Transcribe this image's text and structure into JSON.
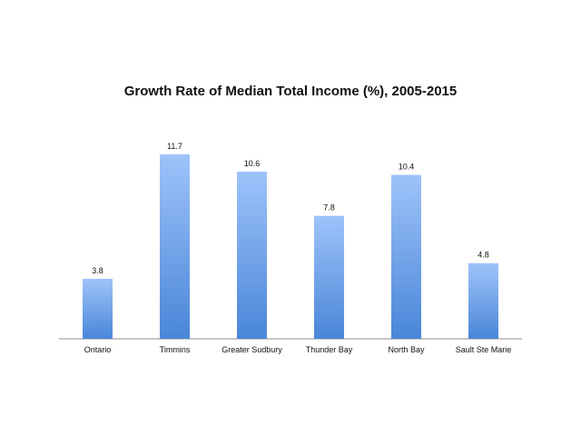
{
  "chart_data": {
    "type": "bar",
    "title": "Growth Rate of Median Total Income (%), 2005-2015",
    "xlabel": "",
    "ylabel": "",
    "categories": [
      "Ontario",
      "Timmins",
      "Greater Sudbury",
      "Thunder Bay",
      "North Bay",
      "Sault Ste Marie"
    ],
    "values": [
      3.8,
      11.7,
      10.6,
      7.8,
      10.4,
      4.8
    ],
    "value_labels": [
      "3.8",
      "11.7",
      "10.6",
      "7.8",
      "10.4",
      "4.8"
    ],
    "ylim": [
      0,
      14
    ],
    "grid": false,
    "legend": "none",
    "colors": {
      "bar_top": "#9ec3fa",
      "bar_bottom": "#4a86d8",
      "axis": "#8c8c8c"
    }
  }
}
